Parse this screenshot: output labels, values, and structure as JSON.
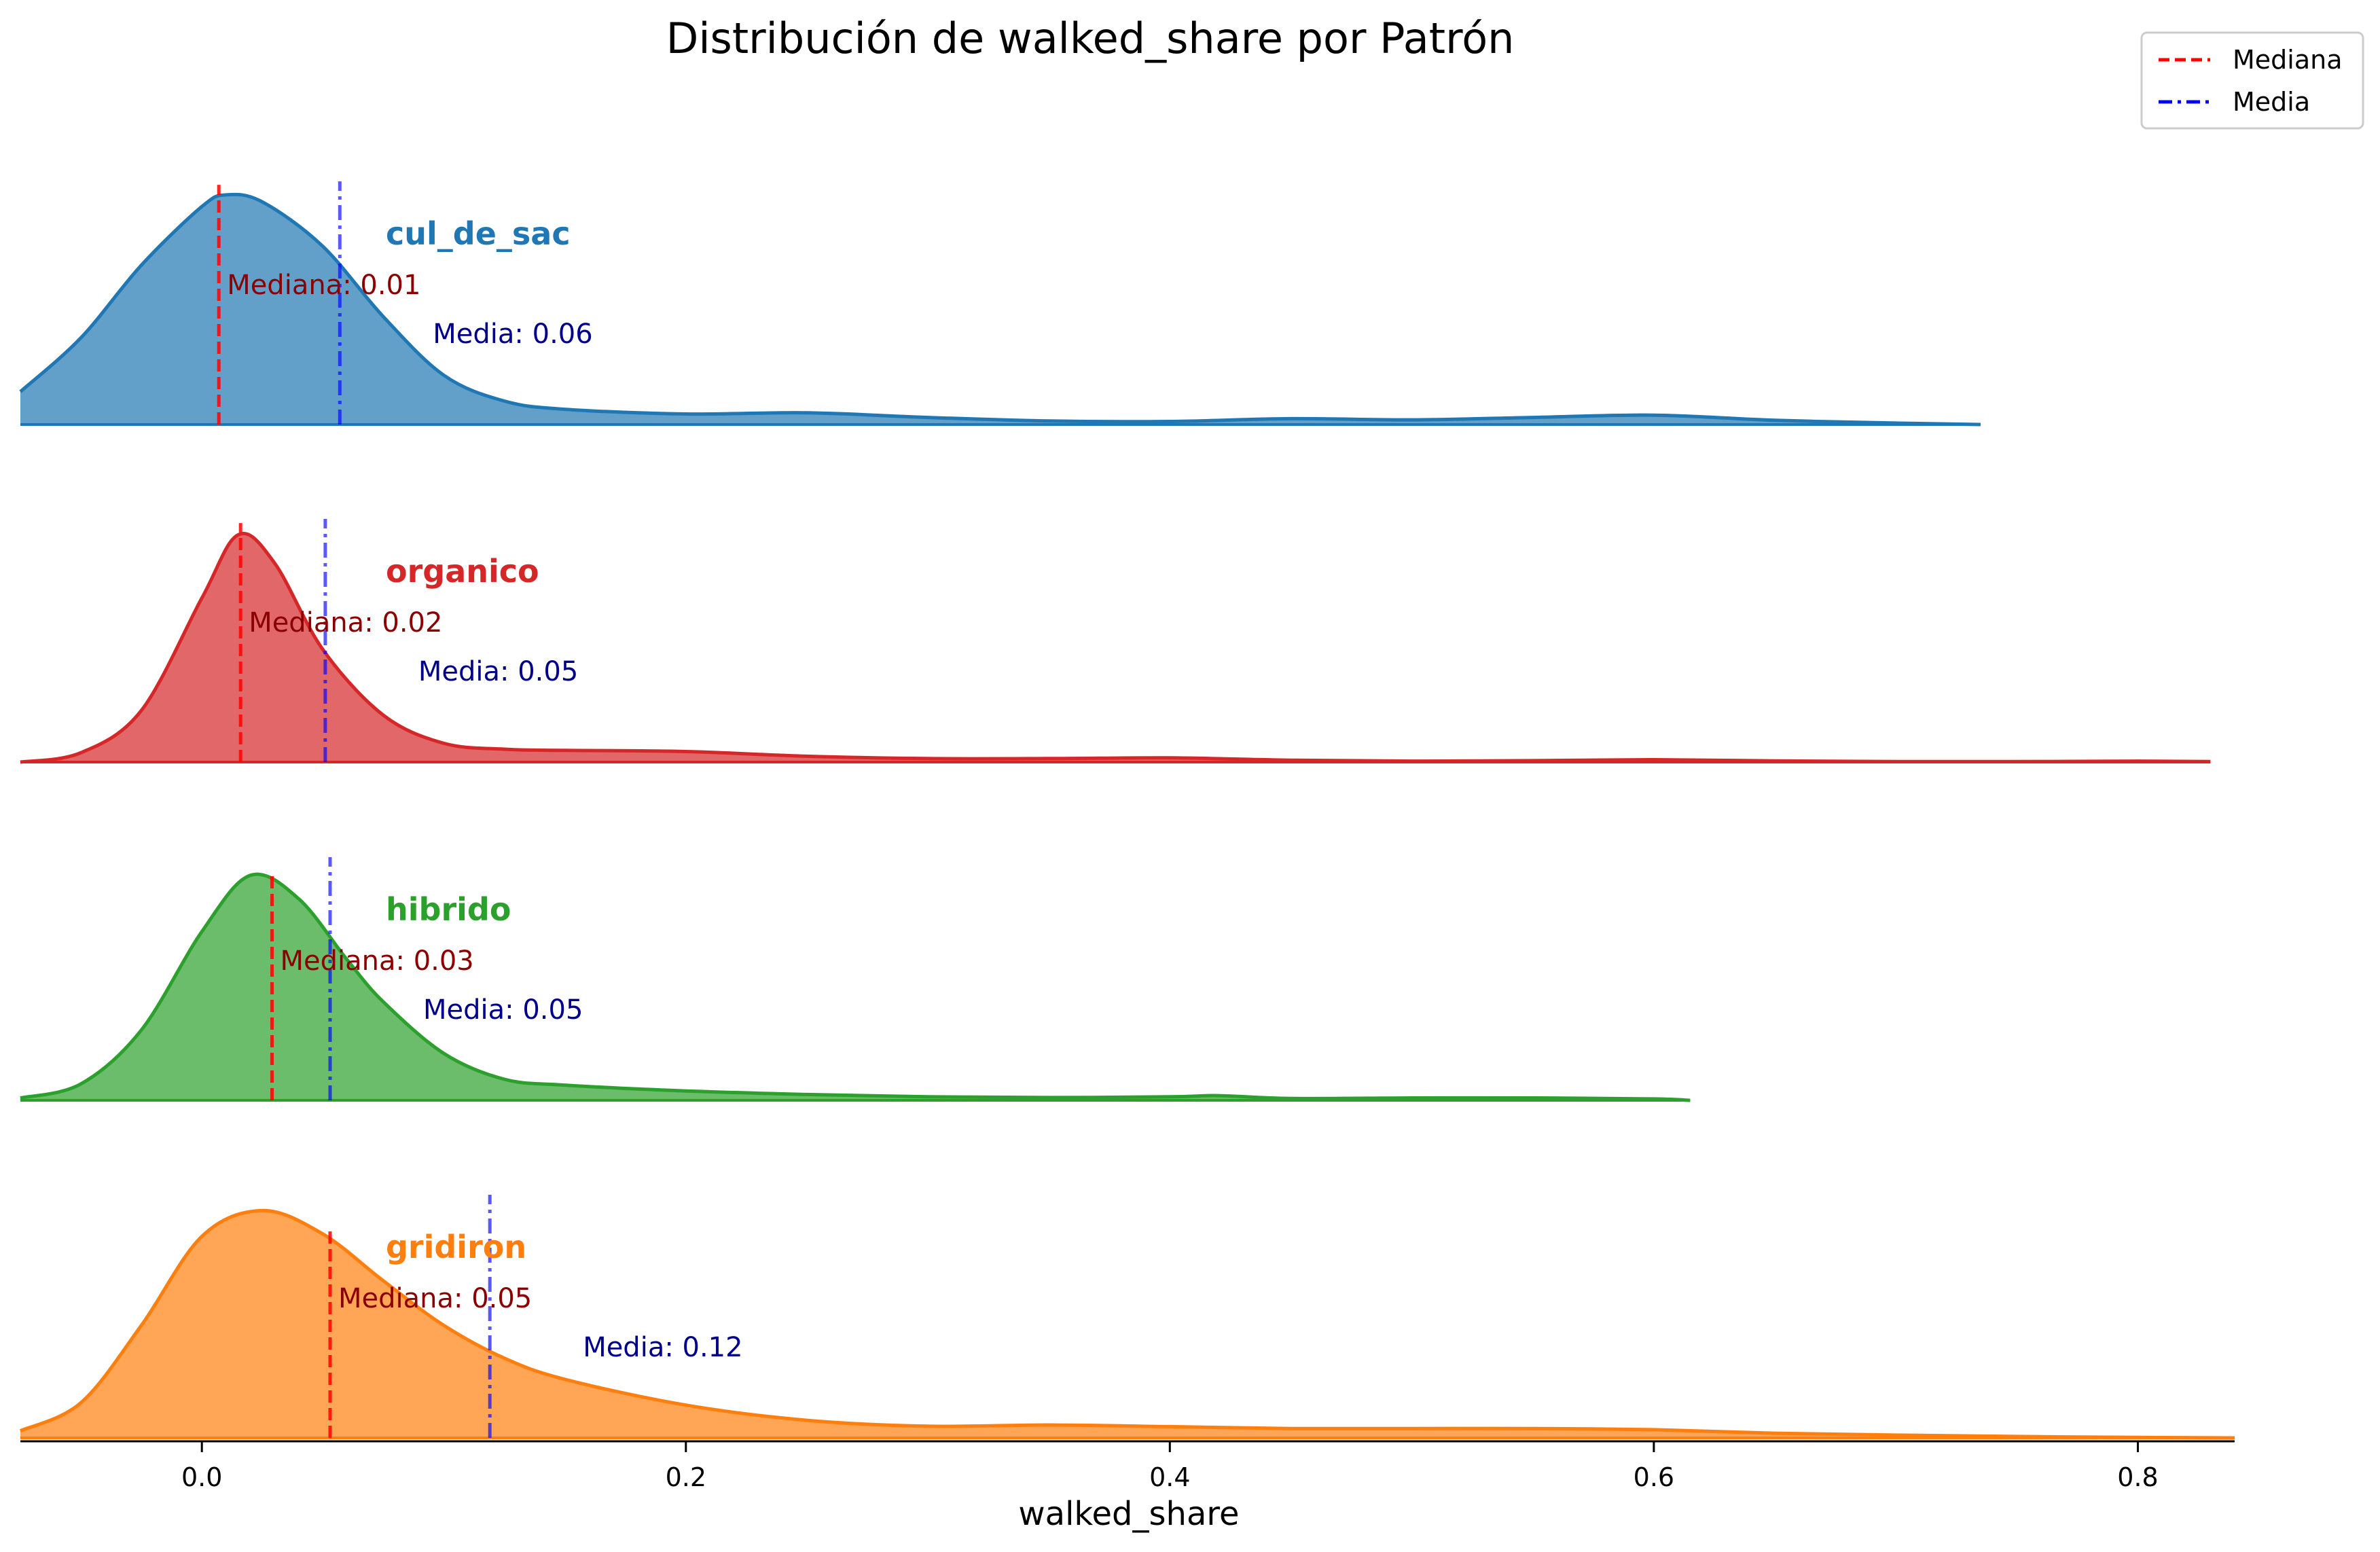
{
  "chart_data": {
    "type": "area",
    "title": "Distribución de walked_share por Patrón",
    "xlabel": "walked_share",
    "xlim": [
      -0.075,
      0.84
    ],
    "xticks": [
      0.0,
      0.2,
      0.4,
      0.6,
      0.8
    ],
    "xtick_labels": [
      "0.0",
      "0.2",
      "0.4",
      "0.6",
      "0.8"
    ],
    "legend": {
      "placement": "top-right",
      "entries": [
        {
          "label": "Mediana",
          "color": "#ff0000",
          "style": "dashed"
        },
        {
          "label": "Media",
          "color": "#0000ff",
          "style": "dashdot"
        }
      ]
    },
    "series": [
      {
        "name": "cul_de_sac",
        "color": "#1f77b4",
        "median": 0.007,
        "mean": 0.057,
        "median_label": "Mediana: 0.01",
        "mean_label": "Media: 0.06",
        "curve_x": [
          -0.075,
          -0.05,
          -0.025,
          0.0,
          0.01,
          0.025,
          0.05,
          0.075,
          0.1,
          0.125,
          0.15,
          0.2,
          0.25,
          0.3,
          0.35,
          0.4,
          0.45,
          0.5,
          0.55,
          0.6,
          0.65,
          0.7,
          0.735
        ],
        "curve_y": [
          0.14,
          0.37,
          0.68,
          0.93,
          0.98,
          0.95,
          0.76,
          0.46,
          0.21,
          0.1,
          0.065,
          0.045,
          0.05,
          0.03,
          0.015,
          0.013,
          0.025,
          0.02,
          0.03,
          0.04,
          0.018,
          0.006,
          0.0
        ]
      },
      {
        "name": "organico",
        "color": "#d62728",
        "median": 0.016,
        "mean": 0.051,
        "median_label": "Mediana: 0.02",
        "mean_label": "Media: 0.05",
        "curve_x": [
          -0.075,
          -0.05,
          -0.025,
          0.0,
          0.015,
          0.03,
          0.05,
          0.075,
          0.1,
          0.125,
          0.15,
          0.2,
          0.25,
          0.3,
          0.35,
          0.4,
          0.45,
          0.5,
          0.55,
          0.6,
          0.65,
          0.7,
          0.75,
          0.8,
          0.83
        ],
        "curve_y": [
          0.0,
          0.04,
          0.22,
          0.7,
          0.97,
          0.85,
          0.48,
          0.2,
          0.08,
          0.055,
          0.05,
          0.045,
          0.025,
          0.015,
          0.015,
          0.018,
          0.008,
          0.004,
          0.006,
          0.01,
          0.005,
          0.002,
          0.002,
          0.004,
          0.002
        ]
      },
      {
        "name": "hibrido",
        "color": "#2ca02c",
        "median": 0.029,
        "mean": 0.053,
        "median_label": "Mediana: 0.03",
        "mean_label": "Media: 0.05",
        "curve_x": [
          -0.075,
          -0.05,
          -0.025,
          0.0,
          0.02,
          0.04,
          0.06,
          0.075,
          0.1,
          0.125,
          0.15,
          0.2,
          0.25,
          0.3,
          0.35,
          0.4,
          0.42,
          0.45,
          0.5,
          0.55,
          0.6,
          0.615
        ],
        "curve_y": [
          0.01,
          0.07,
          0.3,
          0.72,
          0.96,
          0.86,
          0.6,
          0.42,
          0.2,
          0.09,
          0.065,
          0.04,
          0.025,
          0.015,
          0.012,
          0.015,
          0.02,
          0.008,
          0.01,
          0.01,
          0.006,
          0.0
        ]
      },
      {
        "name": "gridiron",
        "color": "#ff7f0e",
        "median": 0.053,
        "mean": 0.119,
        "median_label": "Mediana: 0.05",
        "mean_label": "Media: 0.12",
        "curve_x": [
          -0.075,
          -0.05,
          -0.025,
          0.0,
          0.025,
          0.05,
          0.075,
          0.1,
          0.125,
          0.15,
          0.2,
          0.25,
          0.3,
          0.35,
          0.4,
          0.45,
          0.5,
          0.55,
          0.6,
          0.65,
          0.7,
          0.75,
          0.8,
          0.84
        ],
        "curve_y": [
          0.03,
          0.15,
          0.48,
          0.86,
          0.97,
          0.87,
          0.67,
          0.48,
          0.34,
          0.25,
          0.14,
          0.075,
          0.05,
          0.055,
          0.048,
          0.04,
          0.04,
          0.04,
          0.035,
          0.02,
          0.012,
          0.006,
          0.002,
          0.0
        ]
      }
    ]
  }
}
